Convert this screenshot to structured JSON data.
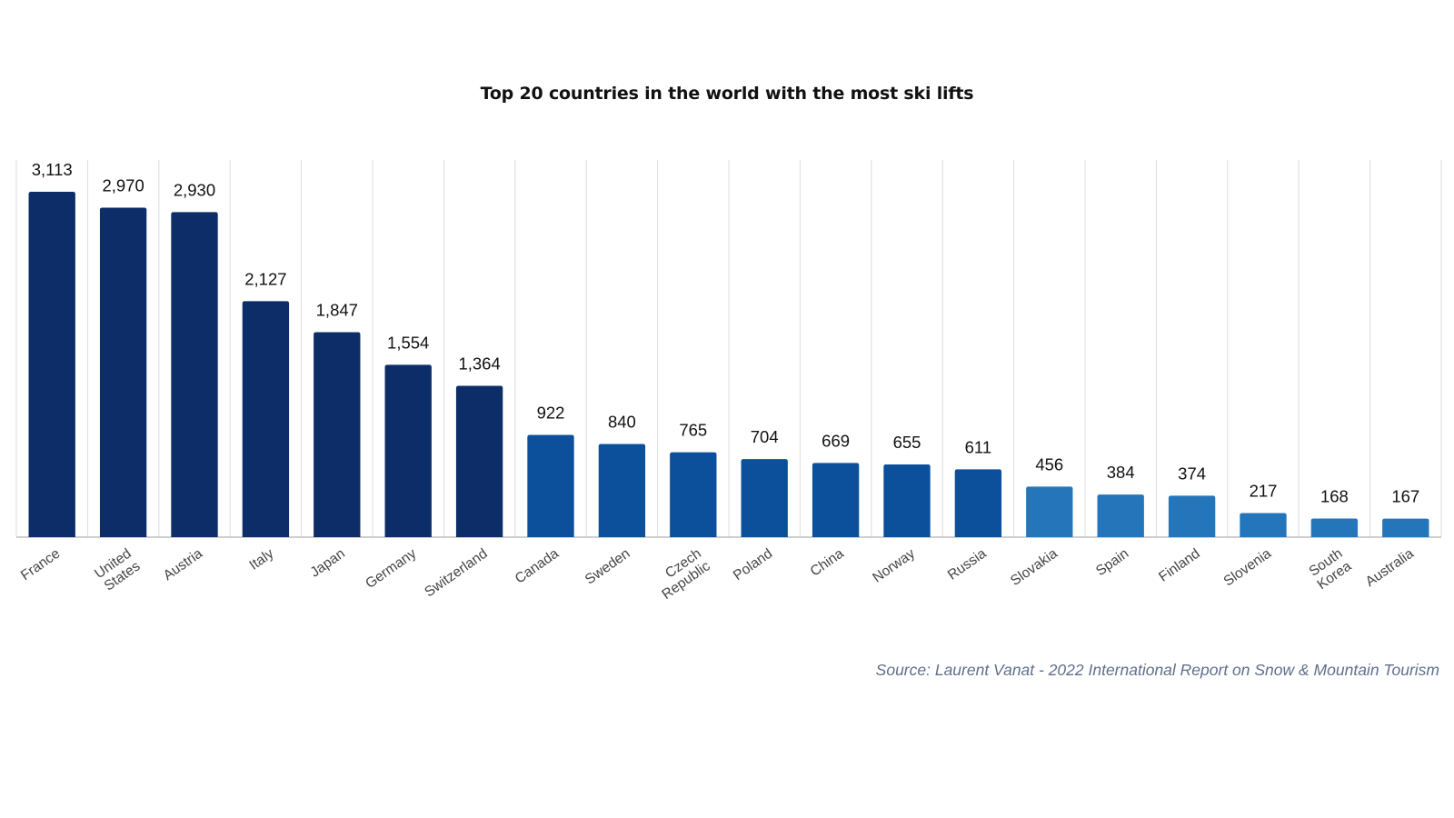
{
  "chart_data": {
    "type": "bar",
    "title": "Top 20 countries in the world with the most ski lifts",
    "xlabel": "",
    "ylabel": "",
    "ylim": [
      0,
      3400
    ],
    "grid": "vertical",
    "categories": [
      "France",
      "United States",
      "Austria",
      "Italy",
      "Japan",
      "Germany",
      "Switzerland",
      "Canada",
      "Sweden",
      "Czech Republic",
      "Poland",
      "China",
      "Norway",
      "Russia",
      "Slovakia",
      "Spain",
      "Finland",
      "Slovenia",
      "South Korea",
      "Australia"
    ],
    "category_lines": [
      [
        "France"
      ],
      [
        "United",
        "States"
      ],
      [
        "Austria"
      ],
      [
        "Italy"
      ],
      [
        "Japan"
      ],
      [
        "Germany"
      ],
      [
        "Switzerland"
      ],
      [
        "Canada"
      ],
      [
        "Sweden"
      ],
      [
        "Czech",
        "Republic"
      ],
      [
        "Poland"
      ],
      [
        "China"
      ],
      [
        "Norway"
      ],
      [
        "Russia"
      ],
      [
        "Slovakia"
      ],
      [
        "Spain"
      ],
      [
        "Finland"
      ],
      [
        "Slovenia"
      ],
      [
        "South",
        "Korea"
      ],
      [
        "Australia"
      ]
    ],
    "values": [
      3113,
      2970,
      2930,
      2127,
      1847,
      1554,
      1364,
      922,
      840,
      765,
      704,
      669,
      655,
      611,
      456,
      384,
      374,
      217,
      168,
      167
    ],
    "value_labels": [
      "3,113",
      "2,970",
      "2,930",
      "2,127",
      "1,847",
      "1,554",
      "1,364",
      "922",
      "840",
      "765",
      "704",
      "669",
      "655",
      "611",
      "456",
      "384",
      "374",
      "217",
      "168",
      "167"
    ],
    "colors": {
      "above_1000": "#0c2d68",
      "600_to_1000": "#0c509b",
      "below_600": "#2575bb",
      "grid": "#dcdcdc",
      "axis": "#bdbdbd"
    },
    "source": "Source: Laurent Vanat - 2022 International Report on Snow & Mountain Tourism"
  }
}
